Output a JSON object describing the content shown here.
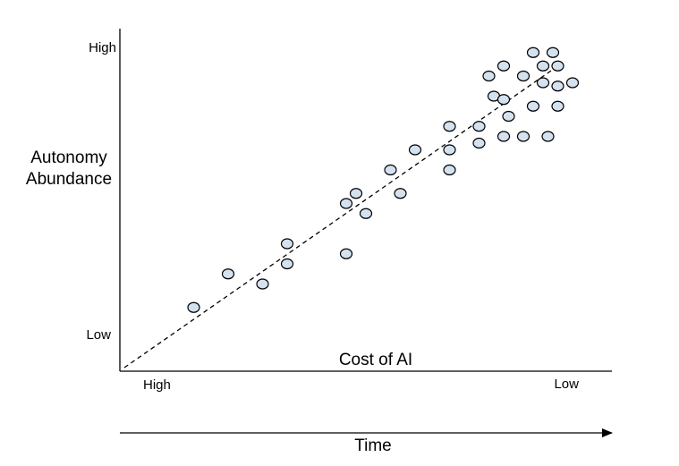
{
  "chart_data": {
    "type": "scatter",
    "ylabel_lines": [
      "Autonomy",
      "Abundance"
    ],
    "xlabel": "Cost of AI",
    "y_ticks": {
      "high": "High",
      "low": "Low"
    },
    "x_ticks": {
      "high": "High",
      "low": "Low"
    },
    "time_label": "Time",
    "xlim": [
      0,
      100
    ],
    "ylim": [
      0,
      100
    ],
    "grid": false,
    "trend_line": {
      "style": "dashed",
      "from": [
        0,
        0
      ],
      "to": [
        90,
        92
      ]
    },
    "points": [
      {
        "x": 15,
        "y": 19
      },
      {
        "x": 22,
        "y": 29
      },
      {
        "x": 29,
        "y": 26
      },
      {
        "x": 34,
        "y": 38
      },
      {
        "x": 34,
        "y": 32
      },
      {
        "x": 46,
        "y": 35
      },
      {
        "x": 46,
        "y": 50
      },
      {
        "x": 48,
        "y": 53
      },
      {
        "x": 50,
        "y": 47
      },
      {
        "x": 55,
        "y": 60
      },
      {
        "x": 57,
        "y": 53
      },
      {
        "x": 60,
        "y": 66
      },
      {
        "x": 67,
        "y": 60
      },
      {
        "x": 67,
        "y": 66
      },
      {
        "x": 67,
        "y": 73
      },
      {
        "x": 73,
        "y": 73
      },
      {
        "x": 73,
        "y": 68
      },
      {
        "x": 75,
        "y": 88
      },
      {
        "x": 76,
        "y": 82
      },
      {
        "x": 78,
        "y": 91
      },
      {
        "x": 78,
        "y": 81
      },
      {
        "x": 79,
        "y": 76
      },
      {
        "x": 78,
        "y": 70
      },
      {
        "x": 82,
        "y": 88
      },
      {
        "x": 82,
        "y": 70
      },
      {
        "x": 84,
        "y": 95
      },
      {
        "x": 84,
        "y": 79
      },
      {
        "x": 86,
        "y": 91
      },
      {
        "x": 86,
        "y": 86
      },
      {
        "x": 87,
        "y": 70
      },
      {
        "x": 88,
        "y": 95
      },
      {
        "x": 89,
        "y": 91
      },
      {
        "x": 89,
        "y": 85
      },
      {
        "x": 89,
        "y": 79
      },
      {
        "x": 92,
        "y": 86
      }
    ],
    "colors": {
      "point_fill": "#d4e2f0",
      "point_stroke": "#000000",
      "axis": "#000000"
    }
  }
}
